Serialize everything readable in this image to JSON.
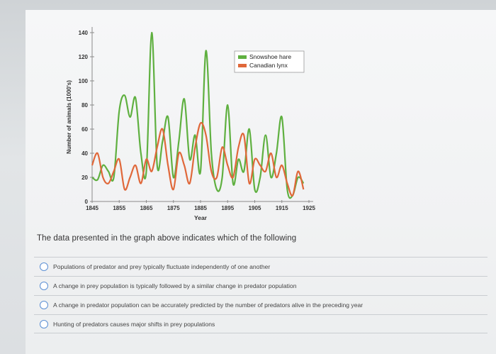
{
  "question": {
    "text": "The data presented in the graph above indicates which of the following",
    "options": [
      "Populations of predator and prey typically fluctuate independently of one another",
      "A change in prey population is typically followed by a similar change in predator population",
      "A change in predator population can be accurately predicted by the number of predators alive in the preceding year",
      "Hunting of predators causes major shifts in prey populations"
    ]
  },
  "colors": {
    "hare": "#5fb040",
    "lynx": "#e0683a",
    "axis": "#8a8a8a",
    "text": "#333333"
  },
  "chart_data": {
    "type": "line",
    "xlabel": "Year",
    "ylabel": "Number of animals (1000's)",
    "xlim": [
      1845,
      1925
    ],
    "ylim": [
      0,
      140
    ],
    "xticks": [
      "1845",
      "1855",
      "1865",
      "1875",
      "1885",
      "1895",
      "1905",
      "1915",
      "1925"
    ],
    "yticks": [
      "0",
      "20",
      "40",
      "60",
      "80",
      "100",
      "120",
      "140"
    ],
    "legend_position": "top-right",
    "legend": [
      "Snowshoe hare",
      "Canadian lynx"
    ],
    "series": [
      {
        "name": "Snowshoe hare",
        "color": "#5fb040",
        "x": [
          1845,
          1847,
          1849,
          1851,
          1853,
          1855,
          1857,
          1859,
          1861,
          1863,
          1865,
          1867,
          1869,
          1871,
          1873,
          1875,
          1877,
          1879,
          1881,
          1883,
          1885,
          1887,
          1889,
          1891,
          1893,
          1895,
          1897,
          1899,
          1901,
          1903,
          1905,
          1907,
          1909,
          1911,
          1913,
          1915,
          1917,
          1919,
          1921,
          1923
        ],
        "y": [
          20,
          18,
          30,
          25,
          20,
          75,
          88,
          70,
          86,
          40,
          25,
          140,
          30,
          50,
          70,
          20,
          50,
          85,
          35,
          55,
          25,
          125,
          40,
          10,
          20,
          80,
          15,
          35,
          25,
          60,
          10,
          20,
          55,
          20,
          40,
          70,
          10,
          5,
          20,
          15
        ]
      },
      {
        "name": "Canadian lynx",
        "color": "#e0683a",
        "x": [
          1845,
          1847,
          1849,
          1851,
          1853,
          1855,
          1857,
          1859,
          1861,
          1863,
          1865,
          1867,
          1869,
          1871,
          1873,
          1875,
          1877,
          1879,
          1881,
          1883,
          1885,
          1887,
          1889,
          1891,
          1893,
          1895,
          1897,
          1899,
          1901,
          1903,
          1905,
          1907,
          1909,
          1911,
          1913,
          1915,
          1917,
          1919,
          1921,
          1923
        ],
        "y": [
          30,
          40,
          20,
          15,
          25,
          35,
          10,
          20,
          30,
          15,
          35,
          25,
          45,
          60,
          30,
          10,
          40,
          30,
          15,
          45,
          65,
          55,
          25,
          20,
          45,
          30,
          20,
          45,
          55,
          15,
          35,
          30,
          25,
          40,
          20,
          30,
          15,
          5,
          25,
          10
        ]
      }
    ]
  }
}
